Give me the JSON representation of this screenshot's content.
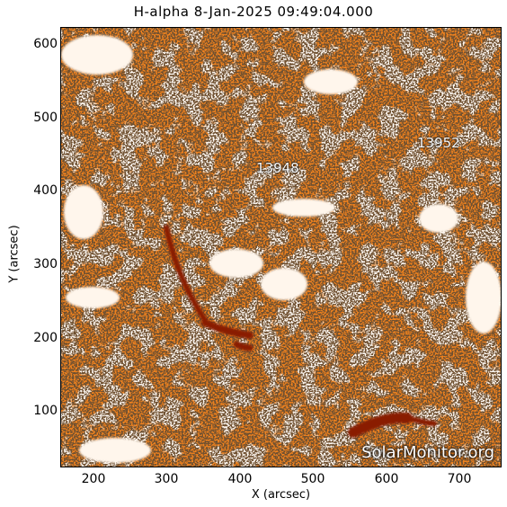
{
  "title": "H-alpha  8-Jan-2025 09:49:04.000",
  "axes": {
    "xlabel": "X (arcsec)",
    "ylabel": "Y (arcsec)",
    "xticks": [
      "200",
      "300",
      "400",
      "500",
      "600",
      "700"
    ],
    "yticks": [
      "600",
      "500",
      "400",
      "300",
      "200",
      "100"
    ]
  },
  "regions": [
    {
      "label": "13948"
    },
    {
      "label": "13952"
    }
  ],
  "watermark": "SolarMonitor.org",
  "colors": {
    "background": "#f0821e",
    "bright": "#fff4e8",
    "dark_filament": "#8a1a05",
    "speckle": "#2a1508"
  }
}
